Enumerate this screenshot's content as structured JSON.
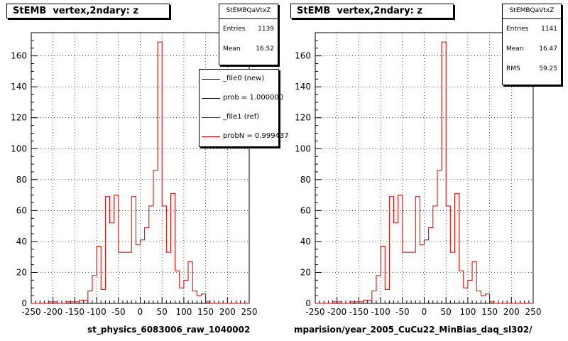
{
  "colors": {
    "ref": "#cc0000",
    "new": "#000000",
    "grid": "#000000"
  },
  "panels": [
    {
      "title": "StEMB  vertex,2ndary: z",
      "stats": {
        "name": "StEMBQaVtxZ",
        "rows": [
          {
            "label": "Entries",
            "value": "1139"
          },
          {
            "label": "Mean",
            "value": "16.52"
          }
        ]
      },
      "xtitle": "st_physics_6083006_raw_1040002",
      "legend": [
        {
          "text": "_file0 (new)",
          "color": "#000000"
        },
        {
          "text": "prob = 1.000000",
          "color": "#000000"
        },
        {
          "text": "_file1 (ref)",
          "color": "#cc0000"
        },
        {
          "text": "probN = 0.999437",
          "color": "#cc0000"
        }
      ]
    },
    {
      "title": "StEMB  vertex,2ndary: z",
      "stats": {
        "name": "StEMBQaVtxZ",
        "rows": [
          {
            "label": "Entries",
            "value": "1141"
          },
          {
            "label": "Mean",
            "value": "16.47"
          },
          {
            "label": "RMS",
            "value": "59.25"
          }
        ]
      },
      "xtitle": "mparision/year_2005_CuCu22_MinBias_daq_sl302/"
    }
  ],
  "chart_data": [
    {
      "type": "histogram",
      "title": "StEMB  vertex,2ndary: z",
      "xlim": [
        -250,
        250
      ],
      "ylim": [
        0,
        175
      ],
      "xticks": [
        -250,
        -200,
        -150,
        -100,
        -50,
        0,
        50,
        100,
        150,
        200,
        250
      ],
      "yticks": [
        0,
        20,
        40,
        60,
        80,
        100,
        120,
        140,
        160
      ],
      "grid": true,
      "bin_edges_start": -250,
      "bin_width": 10,
      "series": [
        {
          "name": "_file1 (ref)",
          "color": "#cc0000",
          "values": [
            0,
            0,
            0,
            0,
            1,
            1,
            0,
            0,
            1,
            1,
            1,
            2,
            2,
            8,
            18,
            37,
            9,
            69,
            52,
            70,
            33,
            33,
            33,
            69,
            38,
            41,
            49,
            63,
            86,
            169,
            63,
            33,
            71,
            21,
            10,
            15,
            27,
            8,
            5,
            6,
            1,
            0,
            0,
            0,
            0,
            0,
            0,
            0,
            0,
            0
          ]
        }
      ]
    },
    {
      "type": "histogram",
      "title": "StEMB  vertex,2ndary: z",
      "xlim": [
        -250,
        250
      ],
      "ylim": [
        0,
        175
      ],
      "xticks": [
        -250,
        -200,
        -150,
        -100,
        -50,
        0,
        50,
        100,
        150,
        200,
        250
      ],
      "yticks": [
        0,
        20,
        40,
        60,
        80,
        100,
        120,
        140,
        160
      ],
      "grid": true,
      "bin_edges_start": -250,
      "bin_width": 10,
      "series": [
        {
          "name": "",
          "color": "#cc0000",
          "values": [
            0,
            0,
            0,
            0,
            1,
            1,
            0,
            0,
            1,
            1,
            1,
            2,
            2,
            8,
            18,
            37,
            9,
            69,
            52,
            70,
            33,
            33,
            33,
            69,
            38,
            41,
            49,
            63,
            86,
            169,
            63,
            33,
            71,
            21,
            10,
            15,
            27,
            8,
            5,
            6,
            1,
            0,
            0,
            0,
            0,
            0,
            0,
            0,
            0,
            0
          ]
        }
      ]
    }
  ]
}
